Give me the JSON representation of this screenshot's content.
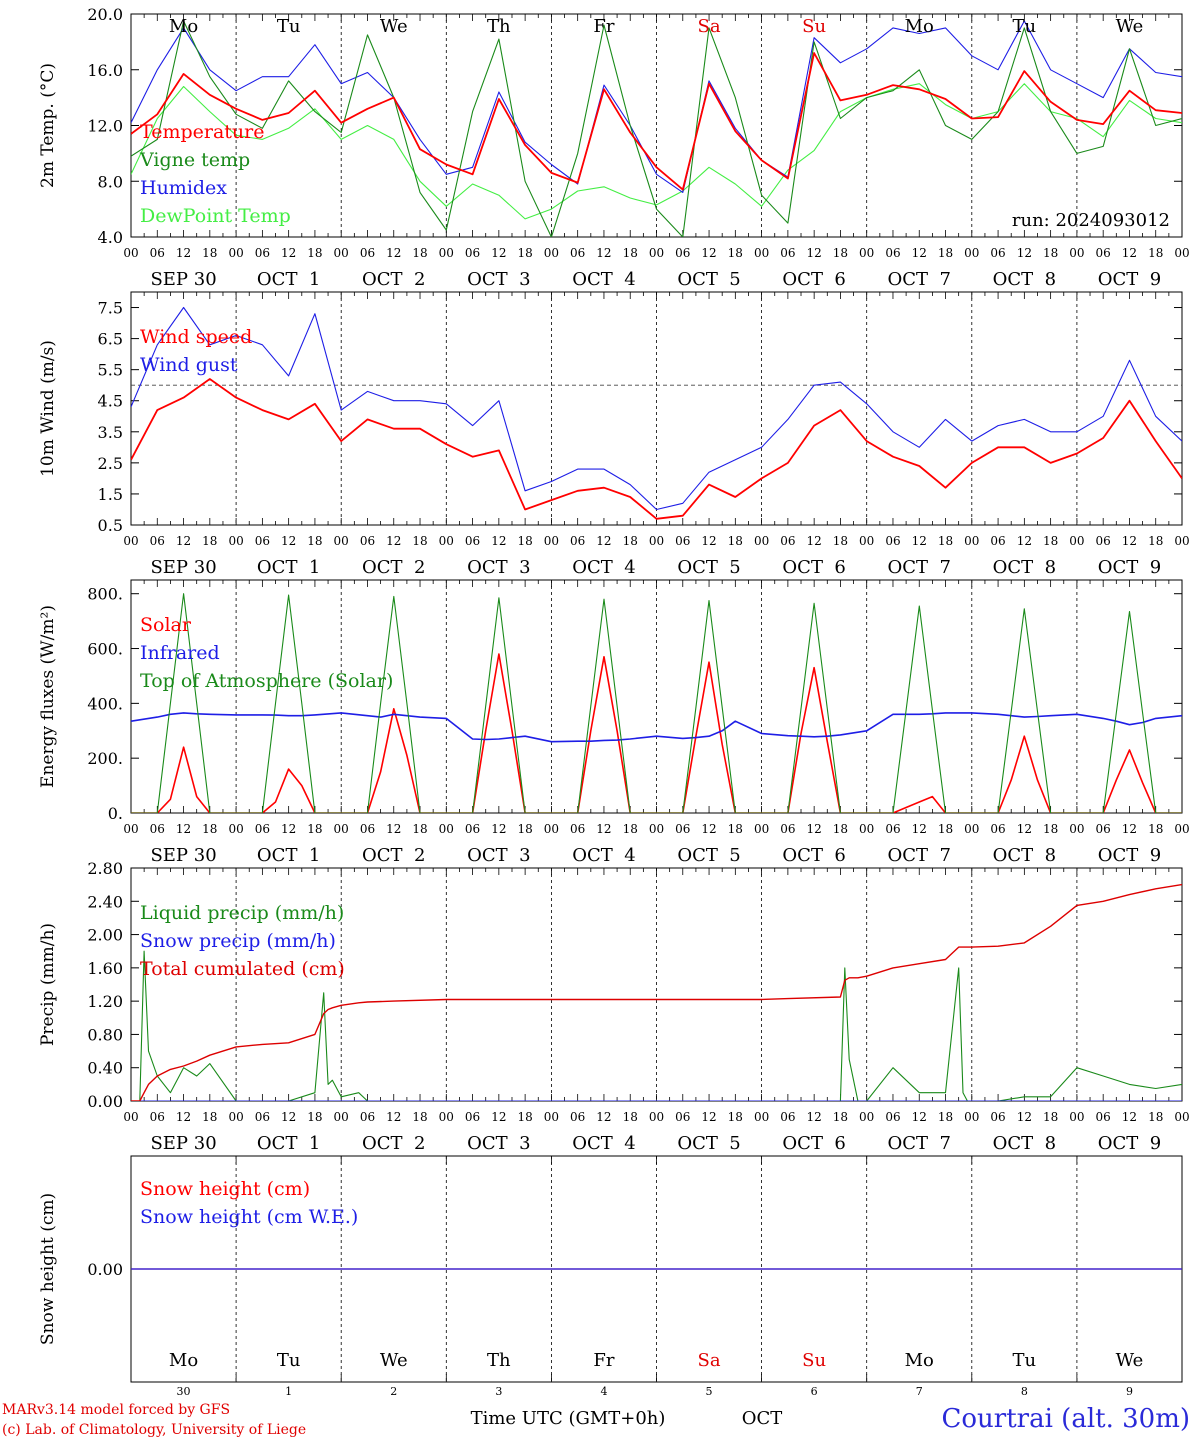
{
  "days": [
    {
      "abbr": "Mo",
      "date": "SEP 30",
      "num": "30",
      "color": "#000000"
    },
    {
      "abbr": "Tu",
      "date": "OCT  1",
      "num": "1",
      "color": "#000000"
    },
    {
      "abbr": "We",
      "date": "OCT  2",
      "num": "2",
      "color": "#000000"
    },
    {
      "abbr": "Th",
      "date": "OCT  3",
      "num": "3",
      "color": "#000000"
    },
    {
      "abbr": "Fr",
      "date": "OCT  4",
      "num": "4",
      "color": "#000000"
    },
    {
      "abbr": "Sa",
      "date": "OCT  5",
      "num": "5",
      "color": "#e00000"
    },
    {
      "abbr": "Su",
      "date": "OCT  6",
      "num": "6",
      "color": "#e00000"
    },
    {
      "abbr": "Mo",
      "date": "OCT  7",
      "num": "7",
      "color": "#000000"
    },
    {
      "abbr": "Tu",
      "date": "OCT  8",
      "num": "8",
      "color": "#000000"
    },
    {
      "abbr": "We",
      "date": "OCT  9",
      "num": "9",
      "color": "#000000"
    }
  ],
  "hour_ticks": [
    "00",
    "06",
    "12",
    "18"
  ],
  "footer": {
    "model": "MARv3.14 model forced by GFS",
    "lab": "(c) Lab. of Climatology, University of Liege",
    "axis_title": "Time UTC (GMT+0h)",
    "month": "OCT",
    "station": "Courtrai (alt. 30m)"
  },
  "chart_data": [
    {
      "id": "temp",
      "type": "line",
      "ylabel": "2m Temp. (°C)",
      "ylim": [
        4,
        20
      ],
      "yticks": [
        "4.0",
        "8.0",
        "12.0",
        "16.0",
        "20.0"
      ],
      "ytick_values": [
        4,
        8,
        12,
        16,
        20
      ],
      "show_day_abbr_top": true,
      "annotation": "run: 2024093012",
      "x_hours": [
        0,
        6,
        12,
        18,
        24,
        30,
        36,
        42,
        48,
        54,
        60,
        66,
        72,
        78,
        84,
        90,
        96,
        102,
        108,
        114,
        120,
        126,
        132,
        138,
        144,
        150,
        156,
        162,
        168,
        174,
        180,
        186,
        192,
        198,
        204,
        210,
        216,
        222,
        228,
        234,
        240
      ],
      "series": [
        {
          "name": "Temperature",
          "color": "#ff0000",
          "width": 1.8,
          "y": [
            11.4,
            12.8,
            15.7,
            14.2,
            13.2,
            12.4,
            12.9,
            14.5,
            12.2,
            13.2,
            14.0,
            10.3,
            9.2,
            8.5,
            13.9,
            10.6,
            8.6,
            7.9,
            14.6,
            11.5,
            9.0,
            7.4,
            15.0,
            11.6,
            9.5,
            8.2,
            17.2,
            13.8,
            14.2,
            14.9,
            14.6,
            13.9,
            12.5,
            12.6,
            15.9,
            13.7,
            12.4,
            12.1,
            14.5,
            13.1,
            12.9
          ]
        },
        {
          "name": "Vigne temp",
          "color": "#1a8a1a",
          "width": 1.1,
          "y": [
            9.8,
            11.0,
            19.5,
            15.5,
            12.8,
            11.8,
            15.2,
            13.0,
            11.5,
            18.5,
            14.0,
            7.2,
            4.5,
            13.0,
            18.2,
            8.0,
            4.0,
            10.0,
            19.2,
            12.0,
            6.0,
            4.0,
            19.0,
            14.0,
            7.0,
            5.0,
            18.0,
            12.5,
            14.0,
            14.5,
            16.0,
            12.0,
            11.0,
            13.0,
            19.0,
            13.0,
            10.0,
            10.5,
            17.5,
            12.0,
            12.5
          ]
        },
        {
          "name": "Humidex",
          "color": "#1e1ee6",
          "width": 1.1,
          "y": [
            12.2,
            16.0,
            19.0,
            16.0,
            14.5,
            15.5,
            15.5,
            17.8,
            15.0,
            15.8,
            14.0,
            11.0,
            8.5,
            9.0,
            14.4,
            10.8,
            9.2,
            7.8,
            14.9,
            12.0,
            8.5,
            7.2,
            15.2,
            11.8,
            9.5,
            8.3,
            18.3,
            16.5,
            17.5,
            19.0,
            18.6,
            19.0,
            17.0,
            16.0,
            19.5,
            16.0,
            15.0,
            14.0,
            17.5,
            15.8,
            15.5
          ]
        },
        {
          "name": "DewPoint Temp",
          "color": "#44ee44",
          "width": 1.1,
          "y": [
            8.5,
            12.5,
            14.8,
            13.0,
            11.3,
            11.0,
            11.8,
            13.2,
            11.0,
            12.0,
            11.0,
            8.0,
            6.2,
            7.8,
            7.0,
            5.3,
            6.0,
            7.3,
            7.6,
            6.8,
            6.3,
            7.3,
            9.0,
            7.8,
            6.2,
            8.8,
            10.2,
            13.0,
            14.0,
            14.6,
            15.0,
            13.5,
            12.5,
            13.0,
            15.0,
            13.0,
            12.5,
            11.2,
            13.8,
            12.5,
            12.2
          ]
        }
      ]
    },
    {
      "id": "wind",
      "type": "line",
      "ylabel": "10m Wind (m/s)",
      "ylim": [
        0.5,
        8.0
      ],
      "yticks": [
        "0.5",
        "1.5",
        "2.5",
        "3.5",
        "4.5",
        "5.5",
        "6.5",
        "7.5"
      ],
      "ytick_values": [
        0.5,
        1.5,
        2.5,
        3.5,
        4.5,
        5.5,
        6.5,
        7.5
      ],
      "ref_line": 5.0,
      "x_hours": [
        0,
        6,
        12,
        18,
        24,
        30,
        36,
        42,
        48,
        54,
        60,
        66,
        72,
        78,
        84,
        90,
        96,
        102,
        108,
        114,
        120,
        126,
        132,
        138,
        144,
        150,
        156,
        162,
        168,
        174,
        180,
        186,
        192,
        198,
        204,
        210,
        216,
        222,
        228,
        234,
        240
      ],
      "series": [
        {
          "name": "Wind speed",
          "color": "#ff0000",
          "width": 1.8,
          "y": [
            2.6,
            4.2,
            4.6,
            5.2,
            4.6,
            4.2,
            3.9,
            4.4,
            3.2,
            3.9,
            3.6,
            3.6,
            3.1,
            2.7,
            2.9,
            1.0,
            1.3,
            1.6,
            1.7,
            1.4,
            0.7,
            0.8,
            1.8,
            1.4,
            2.0,
            2.5,
            3.7,
            4.2,
            3.2,
            2.7,
            2.4,
            1.7,
            2.5,
            3.0,
            3.0,
            2.5,
            2.8,
            3.3,
            4.5,
            3.2,
            2.0
          ]
        },
        {
          "name": "Wind gust",
          "color": "#1e1ee6",
          "width": 1.1,
          "y": [
            4.3,
            6.3,
            7.5,
            6.3,
            6.6,
            6.3,
            5.3,
            7.3,
            4.2,
            4.8,
            4.5,
            4.5,
            4.4,
            3.7,
            4.5,
            1.6,
            1.9,
            2.3,
            2.3,
            1.8,
            1.0,
            1.2,
            2.2,
            2.6,
            3.0,
            3.9,
            5.0,
            5.1,
            4.4,
            3.5,
            3.0,
            3.9,
            3.2,
            3.7,
            3.9,
            3.5,
            3.5,
            4.0,
            5.8,
            4.0,
            3.2
          ]
        }
      ]
    },
    {
      "id": "flux",
      "type": "line",
      "ylabel": "Energy fluxes (W/m²)",
      "ylim": [
        0,
        850
      ],
      "yticks": [
        "0.",
        "200.",
        "400.",
        "600.",
        "800."
      ],
      "ytick_values": [
        0,
        200,
        400,
        600,
        800
      ],
      "x_hours": [
        0,
        6,
        9,
        12,
        15,
        18,
        24,
        30,
        33,
        36,
        39,
        42,
        48,
        54,
        57,
        60,
        63,
        66,
        72,
        78,
        81,
        84,
        87,
        90,
        96,
        102,
        105,
        108,
        111,
        114,
        120,
        126,
        129,
        132,
        135,
        138,
        144,
        150,
        153,
        156,
        159,
        162,
        168,
        174,
        177,
        180,
        183,
        186,
        192,
        198,
        201,
        204,
        207,
        210,
        216,
        222,
        225,
        228,
        231,
        234,
        240
      ],
      "series": [
        {
          "name": "Solar",
          "color": "#ff0000",
          "width": 1.6,
          "y": [
            0,
            0,
            50,
            240,
            60,
            0,
            0,
            0,
            40,
            160,
            100,
            0,
            0,
            0,
            150,
            380,
            210,
            0,
            0,
            0,
            300,
            580,
            300,
            0,
            0,
            0,
            300,
            570,
            300,
            0,
            0,
            0,
            280,
            550,
            250,
            0,
            0,
            0,
            290,
            530,
            260,
            0,
            0,
            0,
            20,
            40,
            60,
            0,
            0,
            0,
            120,
            280,
            120,
            0,
            0,
            0,
            120,
            230,
            110,
            0,
            0
          ]
        },
        {
          "name": "Infrared",
          "color": "#1e1ee6",
          "width": 1.6,
          "y": [
            335,
            350,
            360,
            365,
            362,
            360,
            358,
            358,
            357,
            355,
            355,
            358,
            365,
            355,
            350,
            360,
            355,
            350,
            345,
            270,
            268,
            270,
            275,
            280,
            260,
            262,
            262,
            265,
            266,
            270,
            280,
            272,
            275,
            280,
            300,
            335,
            290,
            282,
            280,
            278,
            280,
            285,
            300,
            360,
            360,
            360,
            362,
            365,
            365,
            360,
            355,
            350,
            352,
            355,
            360,
            345,
            335,
            322,
            330,
            345,
            355
          ]
        },
        {
          "name": "Top of Atmosphere (Solar)",
          "color": "#1a8a1a",
          "width": 1.1,
          "y": [
            0,
            0,
            400,
            800,
            400,
            0,
            0,
            0,
            400,
            795,
            400,
            0,
            0,
            0,
            400,
            790,
            400,
            0,
            0,
            0,
            390,
            785,
            390,
            0,
            0,
            0,
            390,
            780,
            390,
            0,
            0,
            0,
            385,
            775,
            385,
            0,
            0,
            0,
            380,
            765,
            380,
            0,
            0,
            0,
            375,
            755,
            375,
            0,
            0,
            0,
            370,
            745,
            370,
            0,
            0,
            0,
            365,
            735,
            365,
            0,
            0
          ]
        }
      ]
    },
    {
      "id": "precip",
      "type": "line",
      "ylabel": "Precip (mm/h)",
      "ylim": [
        0,
        2.8
      ],
      "yticks": [
        "0.00",
        "0.40",
        "0.80",
        "1.20",
        "1.60",
        "2.00",
        "2.40",
        "2.80"
      ],
      "ytick_values": [
        0,
        0.4,
        0.8,
        1.2,
        1.6,
        2.0,
        2.4,
        2.8
      ],
      "x_hours": [
        0,
        2,
        3,
        4,
        6,
        9,
        12,
        15,
        18,
        24,
        30,
        36,
        42,
        44,
        45,
        46,
        48,
        52,
        54,
        60,
        72,
        96,
        120,
        144,
        150,
        162,
        163,
        164,
        166,
        168,
        174,
        180,
        186,
        189,
        190,
        191,
        192,
        198,
        204,
        210,
        216,
        222,
        228,
        234,
        240
      ],
      "series": [
        {
          "name": "Liquid precip (mm/h)",
          "color": "#1a8a1a",
          "width": 1.1,
          "y": [
            0,
            0,
            1.8,
            0.6,
            0.3,
            0.1,
            0.4,
            0.3,
            0.45,
            0,
            0,
            0,
            0.1,
            1.3,
            0.2,
            0.25,
            0.05,
            0.1,
            0,
            0,
            0,
            0,
            0,
            0,
            0,
            0,
            1.6,
            0.5,
            0,
            0,
            0.4,
            0.1,
            0.1,
            1.6,
            0.1,
            0,
            0,
            0,
            0.05,
            0.05,
            0.4,
            0.3,
            0.2,
            0.15,
            0.2
          ]
        },
        {
          "name": "Snow precip (mm/h)",
          "color": "#1e1ee6",
          "width": 1.1,
          "y": [
            0,
            0,
            0,
            0,
            0,
            0,
            0,
            0,
            0,
            0,
            0,
            0,
            0,
            0,
            0,
            0,
            0,
            0,
            0,
            0,
            0,
            0,
            0,
            0,
            0,
            0,
            0,
            0,
            0,
            0,
            0,
            0,
            0,
            0,
            0,
            0,
            0,
            0,
            0,
            0,
            0,
            0,
            0,
            0,
            0
          ]
        },
        {
          "name": "Total cumulated (cm)",
          "color": "#dd0000",
          "width": 1.4,
          "y": [
            0,
            0,
            0.1,
            0.2,
            0.3,
            0.38,
            0.42,
            0.48,
            0.55,
            0.65,
            0.68,
            0.7,
            0.8,
            1.05,
            1.1,
            1.12,
            1.15,
            1.18,
            1.19,
            1.2,
            1.22,
            1.22,
            1.22,
            1.22,
            1.23,
            1.25,
            1.45,
            1.48,
            1.48,
            1.5,
            1.6,
            1.65,
            1.7,
            1.85,
            1.85,
            1.85,
            1.85,
            1.86,
            1.9,
            2.1,
            2.35,
            2.4,
            2.48,
            2.55,
            2.6
          ]
        }
      ]
    },
    {
      "id": "snow",
      "type": "line",
      "ylabel": "Snow height (cm)",
      "ylim": [
        -1,
        1
      ],
      "yticks": [
        "0.00"
      ],
      "ytick_values": [
        0
      ],
      "show_day_abbr_bottom": true,
      "x_hours": [
        0,
        240
      ],
      "series": [
        {
          "name": "Snow height (cm)",
          "color": "#ff0000",
          "width": 1.2,
          "y": [
            0,
            0
          ]
        },
        {
          "name": "Snow height (cm W.E.)",
          "color": "#1e1ee6",
          "width": 1.2,
          "y": [
            0,
            0
          ]
        }
      ]
    }
  ]
}
